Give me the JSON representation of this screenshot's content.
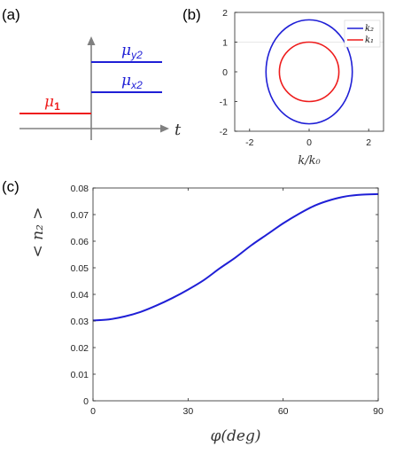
{
  "panel_labels": {
    "a": "(a)",
    "b": "(b)",
    "c": "(c)"
  },
  "colors": {
    "blue": "#1f1fd6",
    "red": "#ee1c1c",
    "axis": "#808080",
    "frame": "#262626"
  },
  "panel_a": {
    "labels": {
      "mu1": "μ",
      "mu1_sub": "1",
      "mux2": "μ",
      "mux2_sub": "x2",
      "muy2": "μ",
      "muy2_sub": "y2",
      "t": "t"
    }
  },
  "chart_data": [
    {
      "id": "b",
      "type": "line",
      "xlabel": "k/k₀",
      "xlim": [
        -2.5,
        2.5
      ],
      "ylim": [
        -2,
        2
      ],
      "xticks": [
        -2,
        0,
        2
      ],
      "yticks": [
        -2,
        -1,
        0,
        1,
        2
      ],
      "legend_position": "top-right",
      "series": [
        {
          "name": "k₂",
          "color": "#1f1fd6",
          "shape": "ellipse",
          "semi_axis_x": 1.45,
          "semi_axis_y": 1.75
        },
        {
          "name": "k₁",
          "color": "#ee1c1c",
          "shape": "circle",
          "radius": 1.0
        }
      ]
    },
    {
      "id": "c",
      "type": "line",
      "xlabel": "φ(deg)",
      "ylabel": "< n₂ >",
      "xlim": [
        0,
        90
      ],
      "ylim": [
        0,
        0.08
      ],
      "xticks": [
        0,
        30,
        60,
        90
      ],
      "yticks": [
        0,
        0.01,
        0.02,
        0.03,
        0.04,
        0.05,
        0.06,
        0.07,
        0.08
      ],
      "series": [
        {
          "color": "#1f1fd6",
          "x": [
            0,
            5,
            10,
            15,
            20,
            25,
            30,
            35,
            40,
            45,
            50,
            55,
            60,
            65,
            70,
            75,
            80,
            85,
            90
          ],
          "y": [
            0.0302,
            0.0306,
            0.0317,
            0.0334,
            0.0358,
            0.0386,
            0.0418,
            0.0454,
            0.0498,
            0.0539,
            0.0585,
            0.0626,
            0.0667,
            0.0703,
            0.0734,
            0.0755,
            0.0769,
            0.0775,
            0.0777
          ]
        }
      ]
    }
  ]
}
